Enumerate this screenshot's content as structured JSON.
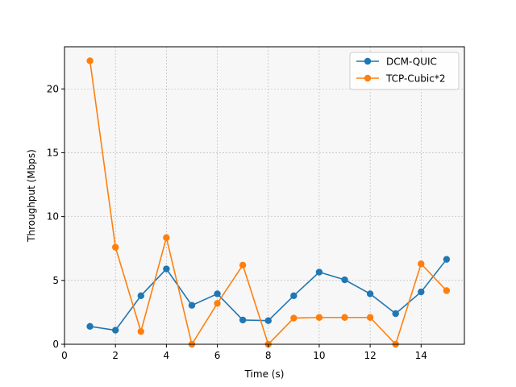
{
  "chart_data": {
    "type": "line",
    "title": "",
    "xlabel": "Time (s)",
    "ylabel": "Throughput (Mbps)",
    "xlim": [
      0,
      15.7
    ],
    "ylim": [
      0,
      23.3
    ],
    "xticks": [
      0,
      2,
      4,
      6,
      8,
      10,
      12,
      14
    ],
    "yticks": [
      0,
      5,
      10,
      15,
      20
    ],
    "grid": true,
    "legend_position": "top-right",
    "x": [
      1,
      2,
      3,
      4,
      5,
      6,
      7,
      8,
      9,
      10,
      11,
      12,
      13,
      14,
      15
    ],
    "series": [
      {
        "name": "DCM-QUIC",
        "color": "#1f77b4",
        "values": [
          1.4,
          1.1,
          3.8,
          5.9,
          3.05,
          3.95,
          1.9,
          1.85,
          3.8,
          5.65,
          5.05,
          3.95,
          2.4,
          4.1,
          6.65
        ]
      },
      {
        "name": "TCP-Cubic*2",
        "color": "#ff7f0e",
        "values": [
          22.2,
          7.6,
          1.0,
          8.35,
          0.0,
          3.2,
          6.2,
          0.0,
          2.05,
          2.1,
          2.1,
          2.1,
          0.0,
          6.3,
          4.2
        ]
      }
    ]
  },
  "style": {
    "plot_background": "#f7f7f7",
    "grid_color": "#b0b0b0"
  }
}
